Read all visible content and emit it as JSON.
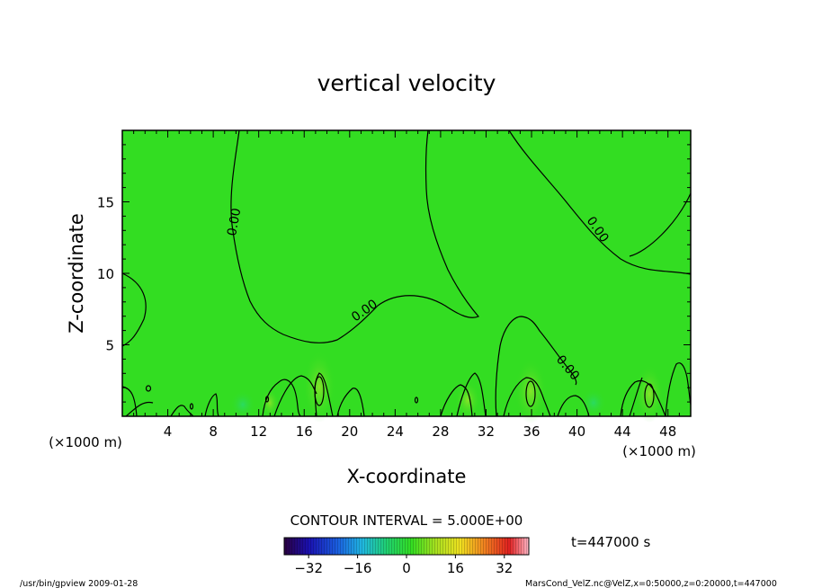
{
  "chart_data": {
    "type": "contour",
    "title": "vertical velocity",
    "xlabel": "X-coordinate",
    "ylabel": "Z-coordinate",
    "x_unit_left": "(×1000 m)",
    "x_unit_right": "(×1000 m)",
    "xlim": [
      0,
      50
    ],
    "ylim": [
      0,
      20
    ],
    "x_ticks": [
      4,
      8,
      12,
      16,
      20,
      24,
      28,
      32,
      36,
      40,
      44,
      48
    ],
    "y_ticks": [
      5,
      10,
      15
    ],
    "contour_interval_label": "CONTOUR INTERVAL = 5.000E+00",
    "contour_labels": [
      "0.00",
      "0.00",
      "0.00",
      "0.00"
    ],
    "time_label": "t=447000 s",
    "colorbar_ticks": [
      -32,
      -16,
      0,
      16,
      32
    ],
    "colorbar_range": [
      -40,
      40
    ],
    "field_color": "#33dd22",
    "plot_border": "#000000"
  },
  "footer": {
    "left": "/usr/bin/gpview  2009-01-28",
    "right": "MarsCond_VelZ.nc@VelZ,x=0:50000,z=0:20000,t=447000"
  }
}
